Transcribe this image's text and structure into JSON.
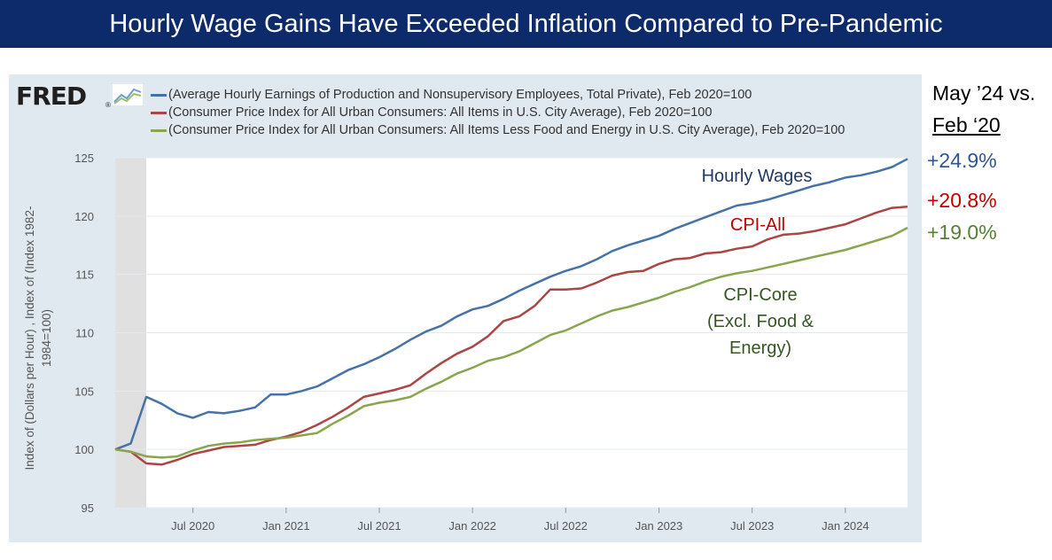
{
  "banner": {
    "title": "Hourly Wage Gains Have Exceeded Inflation Compared to Pre-Pandemic"
  },
  "source": {
    "logo_text": "FRED",
    "logo_icon": "line-chart-icon"
  },
  "side_header": {
    "line1": "May ’24 vs.",
    "line2": "Feb ‘20"
  },
  "chart_data": {
    "type": "line",
    "ylabel": "Index of (Dollars per Hour) , Index of (Index 1982-1984=100)",
    "ylim": [
      95,
      125
    ],
    "yticks": [
      95,
      100,
      105,
      110,
      115,
      120,
      125
    ],
    "xlim": [
      "2020-02",
      "2024-05"
    ],
    "xticks": [
      "Jul 2020",
      "Jan 2021",
      "Jul 2021",
      "Jan 2022",
      "Jul 2022",
      "Jan 2023",
      "Jul 2023",
      "Jan 2024"
    ],
    "grid": "horizontal",
    "legend": "top",
    "recession_shading": [
      "2020-02",
      "2020-04"
    ],
    "x": [
      "2020-02",
      "2020-03",
      "2020-04",
      "2020-05",
      "2020-06",
      "2020-07",
      "2020-08",
      "2020-09",
      "2020-10",
      "2020-11",
      "2020-12",
      "2021-01",
      "2021-02",
      "2021-03",
      "2021-04",
      "2021-05",
      "2021-06",
      "2021-07",
      "2021-08",
      "2021-09",
      "2021-10",
      "2021-11",
      "2021-12",
      "2022-01",
      "2022-02",
      "2022-03",
      "2022-04",
      "2022-05",
      "2022-06",
      "2022-07",
      "2022-08",
      "2022-09",
      "2022-10",
      "2022-11",
      "2022-12",
      "2023-01",
      "2023-02",
      "2023-03",
      "2023-04",
      "2023-05",
      "2023-06",
      "2023-07",
      "2023-08",
      "2023-09",
      "2023-10",
      "2023-11",
      "2023-12",
      "2024-01",
      "2024-02",
      "2024-03",
      "2024-04",
      "2024-05"
    ],
    "series": [
      {
        "name": "(Average Hourly Earnings of Production and Nonsupervisory Employees, Total Private), Feb 2020=100",
        "color": "#4572a7",
        "annotation": "Hourly Wages",
        "annotation_color": "#1f3864",
        "change_label": "+24.9%",
        "change_color": "#2f5597",
        "values": [
          100.0,
          100.5,
          104.5,
          103.9,
          103.1,
          102.7,
          103.2,
          103.1,
          103.3,
          103.6,
          104.7,
          104.7,
          105.0,
          105.4,
          106.1,
          106.8,
          107.3,
          107.9,
          108.6,
          109.4,
          110.1,
          110.6,
          111.4,
          112.0,
          112.3,
          112.9,
          113.6,
          114.2,
          114.8,
          115.3,
          115.7,
          116.3,
          117.0,
          117.5,
          117.9,
          118.3,
          118.9,
          119.4,
          119.9,
          120.4,
          120.9,
          121.1,
          121.4,
          121.8,
          122.2,
          122.6,
          122.9,
          123.3,
          123.5,
          123.8,
          124.2,
          124.9
        ]
      },
      {
        "name": "(Consumer Price Index for All Urban Consumers: All Items in U.S. City Average), Feb 2020=100",
        "color": "#aa4643",
        "annotation": "CPI-All",
        "annotation_color": "#c00000",
        "change_label": "+20.8%",
        "change_color": "#c00000",
        "values": [
          100.0,
          99.8,
          98.8,
          98.7,
          99.1,
          99.6,
          99.9,
          100.2,
          100.3,
          100.4,
          100.8,
          101.1,
          101.5,
          102.1,
          102.8,
          103.6,
          104.5,
          104.8,
          105.1,
          105.5,
          106.5,
          107.4,
          108.2,
          108.8,
          109.7,
          111.0,
          111.4,
          112.3,
          113.7,
          113.7,
          113.8,
          114.3,
          114.9,
          115.2,
          115.3,
          115.9,
          116.3,
          116.4,
          116.8,
          116.9,
          117.2,
          117.4,
          118.0,
          118.4,
          118.5,
          118.7,
          119.0,
          119.3,
          119.8,
          120.3,
          120.7,
          120.8
        ]
      },
      {
        "name": "(Consumer Price Index for All Urban Consumers: All Items Less Food and Energy in U.S. City Average), Feb 2020=100",
        "color": "#89a54e",
        "annotation": "CPI-Core",
        "annotation_line2": "(Excl. Food &",
        "annotation_line3": "Energy)",
        "annotation_color": "#375623",
        "change_label": "+19.0%",
        "change_color": "#548235",
        "values": [
          100.0,
          99.8,
          99.4,
          99.3,
          99.4,
          99.9,
          100.3,
          100.5,
          100.6,
          100.8,
          100.9,
          101.0,
          101.2,
          101.4,
          102.2,
          102.9,
          103.7,
          104.0,
          104.2,
          104.5,
          105.2,
          105.8,
          106.5,
          107.0,
          107.6,
          107.9,
          108.4,
          109.1,
          109.8,
          110.2,
          110.8,
          111.4,
          111.9,
          112.2,
          112.6,
          113.0,
          113.5,
          113.9,
          114.4,
          114.8,
          115.1,
          115.3,
          115.6,
          115.9,
          116.2,
          116.5,
          116.8,
          117.1,
          117.5,
          117.9,
          118.3,
          119.0
        ]
      }
    ]
  }
}
